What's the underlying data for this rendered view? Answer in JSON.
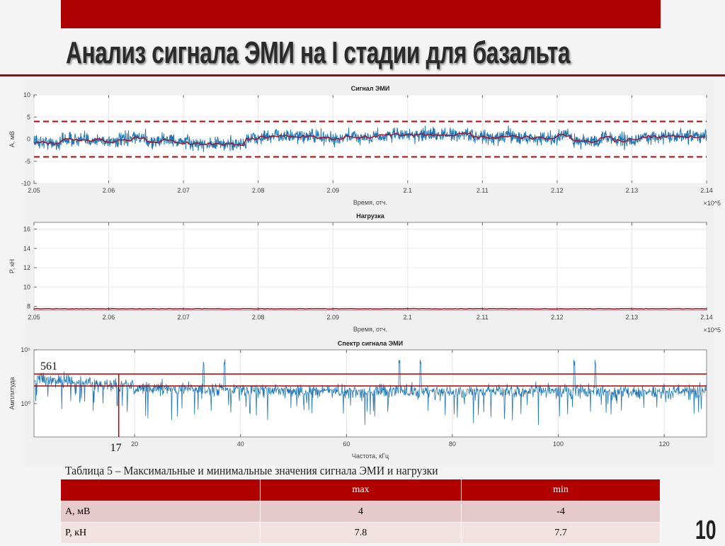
{
  "slide": {
    "title": "Анализ сигнала ЭМИ на I стадии для базальта",
    "page_number": "10",
    "accent_color": "#ad0000"
  },
  "chart_data": [
    {
      "type": "line",
      "title": "Сигнал ЭМИ",
      "xlabel": "Время, отч.",
      "ylabel": "А, мВ",
      "x_exponent": "×10^5",
      "xlim": [
        2.05,
        2.14
      ],
      "ylim": [
        -10,
        10
      ],
      "xticks": [
        "2.05",
        "2.06",
        "2.07",
        "2.08",
        "2.09",
        "2.1",
        "2.11",
        "2.12",
        "2.13",
        "2.14"
      ],
      "yticks": [
        "-10",
        "-5",
        "0",
        "5",
        "10"
      ],
      "threshold_lines": [
        4,
        -4
      ],
      "signal_color": "#1f77b4",
      "mean_color": "#a2142f",
      "threshold_color": "#c00000",
      "grid": true
    },
    {
      "type": "line",
      "title": "Нагрузка",
      "xlabel": "Время, отч.",
      "ylabel": "P, кН",
      "x_exponent": "×10^5",
      "xlim": [
        2.05,
        2.14
      ],
      "ylim": [
        7.6,
        16.7
      ],
      "xticks": [
        "2.05",
        "2.06",
        "2.07",
        "2.08",
        "2.09",
        "2.1",
        "2.11",
        "2.12",
        "2.13",
        "2.14"
      ],
      "yticks": [
        "8",
        "10",
        "12",
        "14",
        "16"
      ],
      "load_level": 7.75,
      "line_color": "#a2142f",
      "grid": true
    },
    {
      "type": "line",
      "title": "Спектр сигнала ЭМИ",
      "xlabel": "Частота, кГц",
      "ylabel": "Амплитуда",
      "yscale": "log",
      "xlim": [
        1,
        128
      ],
      "ylim_log10": [
        -3.1,
        5
      ],
      "xticks": [
        "20",
        "40",
        "60",
        "80",
        "100",
        "120"
      ],
      "yticks": [
        "10^0",
        "10^5"
      ],
      "threshold_lines": [
        561,
        44
      ],
      "marker_frequency": 17,
      "annotations": [
        "561",
        "17"
      ],
      "peaks_khz": [
        33,
        37,
        70,
        74,
        103,
        107
      ],
      "line_color": "#1f77b4",
      "marker_color": "#b00000"
    }
  ],
  "table": {
    "caption": "Таблица 5 – Максимальные и минимальные значения сигнала ЭМИ и нагрузки",
    "headers": [
      "",
      "max",
      "min"
    ],
    "rows": [
      [
        "А, мВ",
        "4",
        "-4"
      ],
      [
        "P, кН",
        "7.8",
        "7.7"
      ]
    ]
  }
}
